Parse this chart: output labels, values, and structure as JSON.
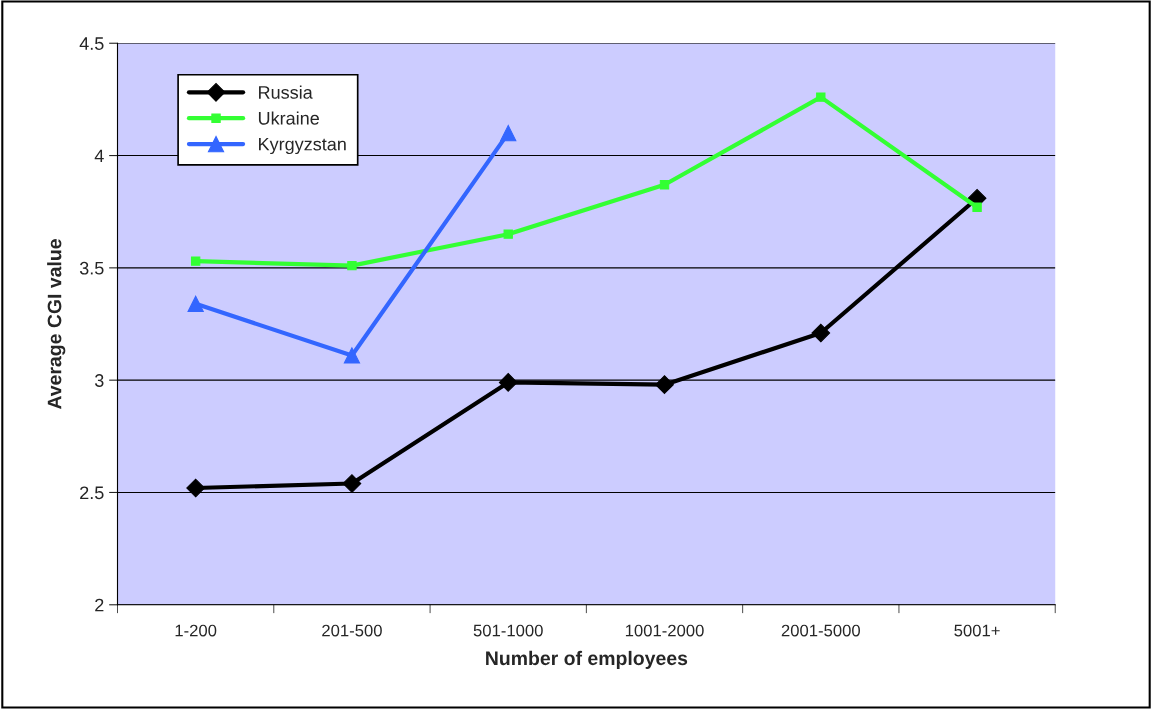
{
  "chart_data": {
    "type": "line",
    "xlabel": "Number of employees",
    "ylabel": "Average CGI value",
    "categories": [
      "1-200",
      "201-500",
      "501-1000",
      "1001-2000",
      "2001-5000",
      "5001+"
    ],
    "series": [
      {
        "name": "Russia",
        "color": "#000000",
        "marker": "diamond",
        "values": [
          2.52,
          2.54,
          2.99,
          2.98,
          3.21,
          3.81
        ]
      },
      {
        "name": "Ukraine",
        "color": "#33ff33",
        "marker": "square",
        "values": [
          3.53,
          3.51,
          3.65,
          3.87,
          4.26,
          3.77
        ]
      },
      {
        "name": "Kyrgyzstan",
        "color": "#3366ff",
        "marker": "triangle",
        "values": [
          3.34,
          3.11,
          4.1,
          null,
          null,
          null
        ]
      }
    ],
    "ylim": [
      2,
      4.5
    ],
    "yticks": [
      2,
      2.5,
      3,
      3.5,
      4,
      4.5
    ],
    "grid": "y",
    "legend": "top left"
  }
}
